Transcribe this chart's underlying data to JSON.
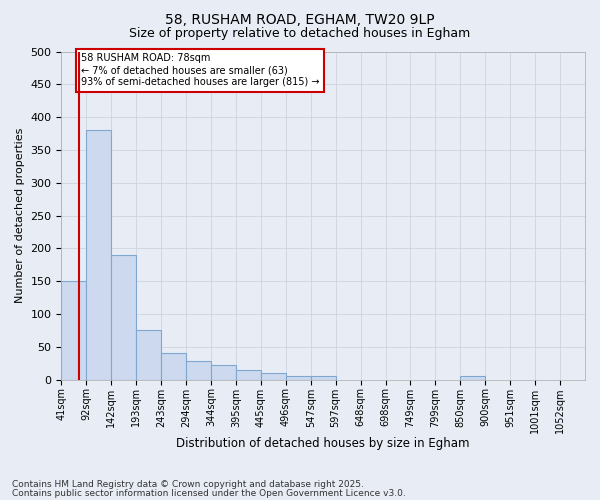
{
  "title1": "58, RUSHAM ROAD, EGHAM, TW20 9LP",
  "title2": "Size of property relative to detached houses in Egham",
  "xlabel": "Distribution of detached houses by size in Egham",
  "ylabel": "Number of detached properties",
  "bin_labels": [
    "41sqm",
    "92sqm",
    "142sqm",
    "193sqm",
    "243sqm",
    "294sqm",
    "344sqm",
    "395sqm",
    "445sqm",
    "496sqm",
    "547sqm",
    "597sqm",
    "648sqm",
    "698sqm",
    "749sqm",
    "799sqm",
    "850sqm",
    "900sqm",
    "951sqm",
    "1001sqm",
    "1052sqm"
  ],
  "bar_heights": [
    150,
    380,
    190,
    75,
    40,
    28,
    22,
    15,
    10,
    5,
    5,
    0,
    0,
    0,
    0,
    0,
    5,
    0,
    0,
    0,
    0
  ],
  "bar_color": "#ccd9ee",
  "bar_edge_color": "#7fa8d1",
  "subject_line_color": "#cc0000",
  "annotation_text": "58 RUSHAM ROAD: 78sqm\n← 7% of detached houses are smaller (63)\n93% of semi-detached houses are larger (815) →",
  "annotation_box_color": "#cc0000",
  "annotation_text_color": "#000000",
  "ylim": [
    0,
    500
  ],
  "yticks": [
    0,
    50,
    100,
    150,
    200,
    250,
    300,
    350,
    400,
    450,
    500
  ],
  "grid_color": "#c8d0dc",
  "bg_color": "#e8edf5",
  "footer1": "Contains HM Land Registry data © Crown copyright and database right 2025.",
  "footer2": "Contains public sector information licensed under the Open Government Licence v3.0."
}
